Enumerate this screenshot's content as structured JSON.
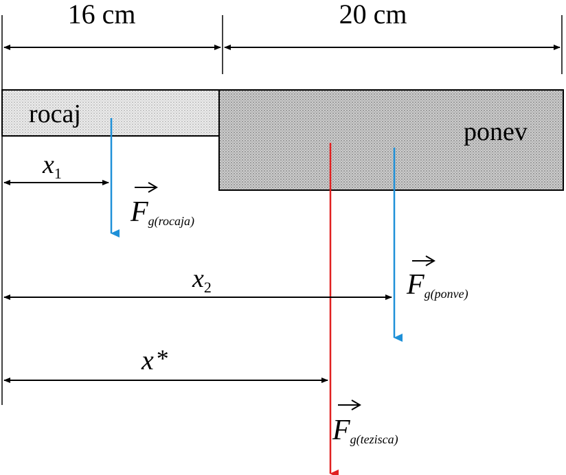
{
  "dimensions": {
    "handle_length": "16 cm",
    "pan_length": "20 cm"
  },
  "labels": {
    "handle": "rocaj",
    "pan": "ponev"
  },
  "distances": {
    "x1": {
      "var": "x",
      "sub": "1"
    },
    "x2": {
      "var": "x",
      "sub": "2"
    },
    "xstar": {
      "var": "x",
      "sup": "*"
    }
  },
  "forces": {
    "handle": {
      "symbol": "F",
      "sub": "g(rocaja)"
    },
    "pan": {
      "symbol": "F",
      "sub": "g(ponve)"
    },
    "center": {
      "symbol": "F",
      "sub": "g(tezisca)"
    }
  },
  "colors": {
    "outline": "#000000",
    "handle_fill": "#e4e4e4",
    "pan_fill": "#c4c4c4",
    "force_arrow": "#1e90d8",
    "center_arrow": "#e02020"
  }
}
